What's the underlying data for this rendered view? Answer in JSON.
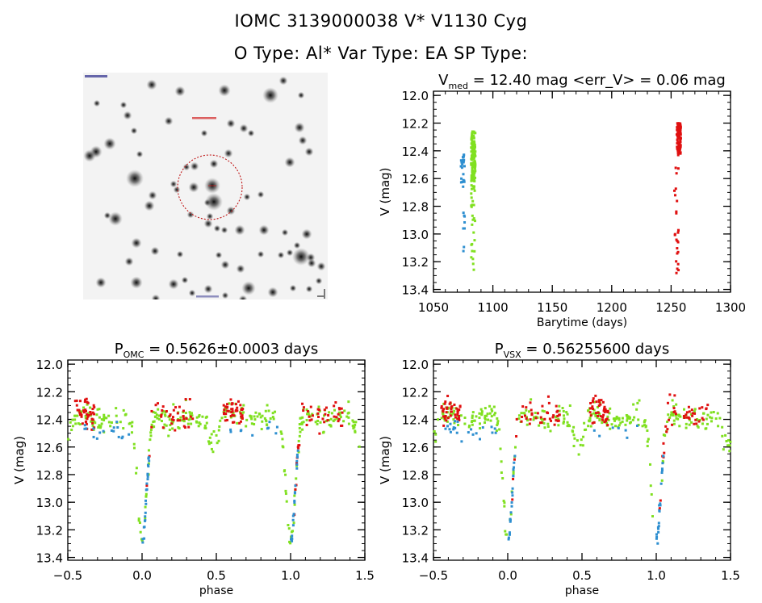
{
  "header": {
    "title_line1": "IOMC 3139000038    V* V1130 Cyg",
    "title_line2": "O Type: Al*  Var Type: EA  SP Type:"
  },
  "image_panel": {
    "type": "sky-image",
    "description": "Grayscale finder chart with red dashed circle around target star",
    "target_marker": "red-dashed-circle",
    "colors": {
      "circle": "#d02020",
      "label": "#d02020",
      "corner_label": "#1a1a8a"
    }
  },
  "colors": {
    "blue": "#2e8fd0",
    "green": "#80e020",
    "red": "#e01010",
    "axis": "#000000"
  },
  "chart_data": [
    {
      "id": "lightcurve",
      "type": "scatter",
      "title_main": "V",
      "title_sub": "med",
      "title_rest": " = 12.40 mag <err_V> = 0.06 mag",
      "xlabel": "Barytime (days)",
      "ylabel": "V (mag)",
      "xlim": [
        1050,
        1300
      ],
      "ylim": [
        13.42,
        11.97
      ],
      "y_inverted": true,
      "xticks": [
        1050,
        1100,
        1150,
        1200,
        1250,
        1300
      ],
      "xtick_labels": [
        "1050",
        "1100",
        "1150",
        "1200",
        "1250",
        "1300"
      ],
      "yticks": [
        12.0,
        12.2,
        12.4,
        12.6,
        12.8,
        13.0,
        13.2,
        13.4
      ],
      "ytick_labels": [
        "12.0",
        "12.2",
        "12.4",
        "12.6",
        "12.8",
        "13.0",
        "13.2",
        "13.4"
      ],
      "x_minor_step": 10,
      "y_minor_step": 0.05,
      "grid": false,
      "series": [
        {
          "name": "blue",
          "color_key": "blue",
          "x_range": [
            1073,
            1077
          ],
          "clusters": [
            {
              "x": 1074.5,
              "y_min": 12.38,
              "y_max": 12.66,
              "n": 22
            },
            {
              "x": 1075.5,
              "y_min": 12.84,
              "y_max": 13.14,
              "n": 8
            }
          ]
        },
        {
          "name": "green",
          "color_key": "green",
          "x_range": [
            1081,
            1086
          ],
          "clusters": [
            {
              "x": 1083.5,
              "y_min": 12.26,
              "y_max": 12.62,
              "n": 140
            },
            {
              "x": 1083.5,
              "y_min": 12.62,
              "y_max": 13.27,
              "n": 28
            }
          ]
        },
        {
          "name": "red",
          "color_key": "red",
          "x_range": [
            1253,
            1258
          ],
          "clusters": [
            {
              "x": 1256.5,
              "y_min": 12.2,
              "y_max": 12.42,
              "n": 90
            },
            {
              "x": 1254.5,
              "y_min": 12.42,
              "y_max": 13.29,
              "n": 26
            }
          ]
        }
      ]
    },
    {
      "id": "phase-omc",
      "type": "scatter",
      "title_main": "P",
      "title_sub": "OMC",
      "title_rest": " = 0.5626±0.0003 days",
      "xlabel": "phase",
      "ylabel": "V (mag)",
      "xlim": [
        -0.5,
        1.5
      ],
      "ylim": [
        13.42,
        11.97
      ],
      "y_inverted": true,
      "xticks": [
        -0.5,
        0.0,
        0.5,
        1.0,
        1.5
      ],
      "xtick_labels": [
        "−0.5",
        "0.0",
        "0.5",
        "1.0",
        "1.5"
      ],
      "yticks": [
        12.0,
        12.2,
        12.4,
        12.6,
        12.8,
        13.0,
        13.2,
        13.4
      ],
      "ytick_labels": [
        "12.0",
        "12.2",
        "12.4",
        "12.6",
        "12.8",
        "13.0",
        "13.2",
        "13.4"
      ],
      "x_minor_step": 0.1,
      "y_minor_step": 0.05,
      "grid": false,
      "light_curve_model": {
        "description": "Eclipsing binary (EA): primary minimum at phase 0 and 1 (~13.27 mag), secondary minimum near phase 0.5 (~12.58 mag), maxima ~12.33 mag near phases 0.25 and 0.75",
        "primary_min_phase": 0.0,
        "primary_min_mag": 13.27,
        "secondary_min_phase": 0.48,
        "secondary_min_mag": 12.58,
        "max_mag": 12.33
      },
      "series": [
        {
          "name": "green",
          "color_key": "green",
          "phase_coverage": "full",
          "scatter": 0.04
        },
        {
          "name": "red",
          "color_key": "red",
          "phase_coverage": [
            [
              -0.45,
              -0.32
            ],
            [
              0.02,
              0.35
            ],
            [
              0.55,
              0.68
            ],
            [
              1.02,
              1.35
            ]
          ],
          "offset": -0.03,
          "scatter": 0.05
        },
        {
          "name": "blue",
          "color_key": "blue",
          "phase_coverage": [
            [
              -0.42,
              -0.08
            ],
            [
              0.0,
              0.05
            ],
            [
              0.58,
              0.92
            ],
            [
              1.0,
              1.05
            ]
          ],
          "offset": 0.1,
          "scatter": 0.03
        }
      ]
    },
    {
      "id": "phase-vsx",
      "type": "scatter",
      "title_main": "P",
      "title_sub": "VSX",
      "title_rest": " = 0.56255600 days",
      "xlabel": "phase",
      "ylabel": "V (mag)",
      "xlim": [
        -0.5,
        1.5
      ],
      "ylim": [
        13.42,
        11.97
      ],
      "y_inverted": true,
      "xticks": [
        -0.5,
        0.0,
        0.5,
        1.0,
        1.5
      ],
      "xtick_labels": [
        "−0.5",
        "0.0",
        "0.5",
        "1.0",
        "1.5"
      ],
      "yticks": [
        12.0,
        12.2,
        12.4,
        12.6,
        12.8,
        13.0,
        13.2,
        13.4
      ],
      "ytick_labels": [
        "12.0",
        "12.2",
        "12.4",
        "12.6",
        "12.8",
        "13.0",
        "13.2",
        "13.4"
      ],
      "x_minor_step": 0.1,
      "y_minor_step": 0.05,
      "grid": false,
      "light_curve_model": {
        "description": "Same eclipsing binary folded with VSX period",
        "primary_min_phase": 0.0,
        "primary_min_mag": 13.27,
        "secondary_min_phase": 0.48,
        "secondary_min_mag": 12.58,
        "max_mag": 12.33
      },
      "series": [
        {
          "name": "green",
          "color_key": "green",
          "phase_coverage": "full",
          "scatter": 0.04
        },
        {
          "name": "red",
          "color_key": "red",
          "phase_coverage": [
            [
              -0.45,
              -0.32
            ],
            [
              0.02,
              0.35
            ],
            [
              0.55,
              0.68
            ],
            [
              1.02,
              1.35
            ]
          ],
          "offset": -0.03,
          "scatter": 0.05
        },
        {
          "name": "blue",
          "color_key": "blue",
          "phase_coverage": [
            [
              -0.42,
              -0.08
            ],
            [
              0.0,
              0.05
            ],
            [
              0.58,
              0.92
            ],
            [
              1.0,
              1.05
            ]
          ],
          "offset": 0.1,
          "scatter": 0.03
        }
      ]
    }
  ]
}
